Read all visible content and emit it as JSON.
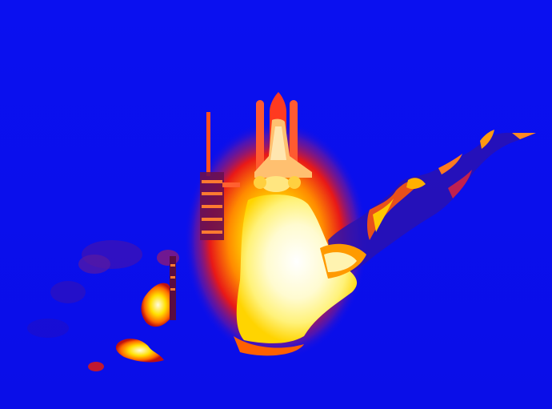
{
  "image": {
    "subject": "shuttle-launch-false-color",
    "colors": {
      "sky": "#0a0ef0",
      "sky_dark": "#0508c8",
      "cloud_dim": "#2a10c0",
      "cloud_magenta": "#7a1890",
      "glow_red": "#e81818",
      "glow_orange": "#ff7a00",
      "glow_yellow": "#ffe200",
      "core_white": "#fffbe0",
      "vehicle_red": "#ff4a30",
      "tower_dark": "#5a0c40"
    }
  }
}
